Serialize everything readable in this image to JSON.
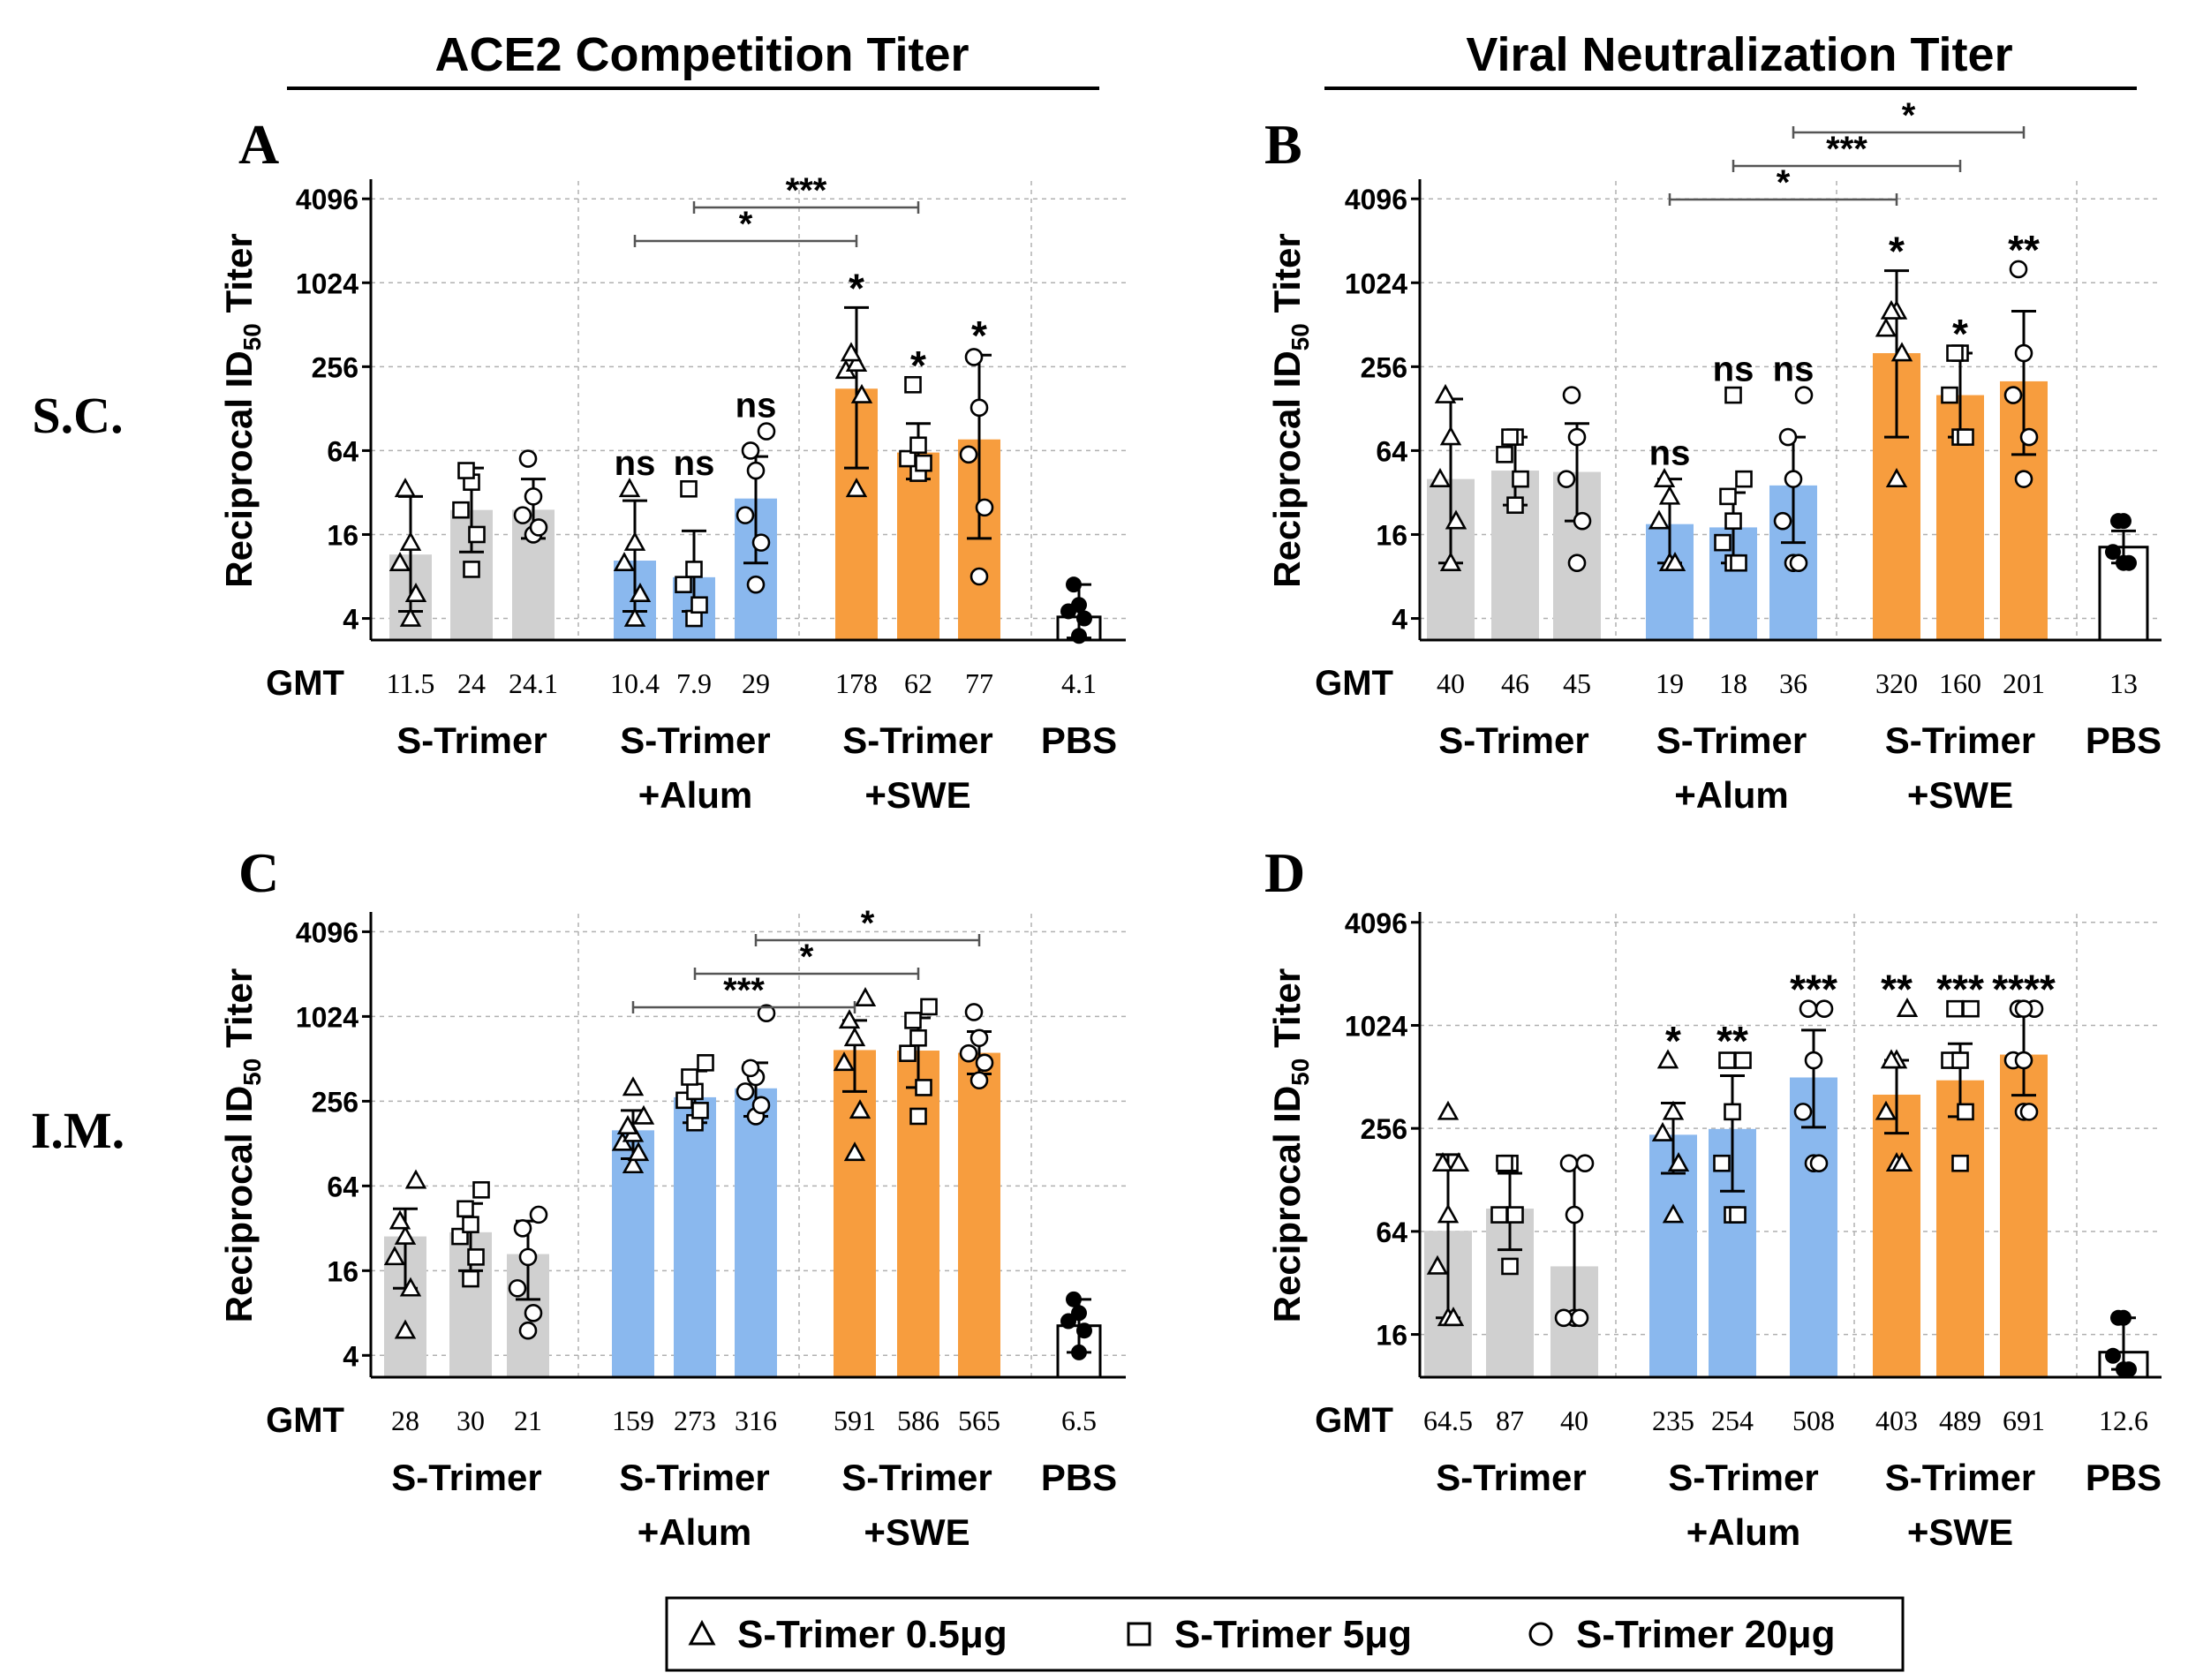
{
  "figure": {
    "col_headers": [
      "ACE2 Competition Titer",
      "Viral Neutralization Titer"
    ],
    "row_labels": [
      "S.C.",
      "I.M."
    ],
    "y_axis_label": "Reciprocal ID",
    "y_axis_sub": "50",
    "y_axis_suffix": " Titer",
    "gmt_label": "GMT",
    "group_names": [
      [
        "S-Trimer"
      ],
      [
        "S-Trimer",
        "+Alum"
      ],
      [
        "S-Trimer",
        "+SWE"
      ],
      [
        "PBS"
      ]
    ],
    "legend": [
      {
        "marker": "triangle",
        "label": "S-Trimer 0.5μg"
      },
      {
        "marker": "square",
        "label": "S-Trimer 5μg"
      },
      {
        "marker": "circle",
        "label": "S-Trimer 20μg"
      }
    ]
  },
  "colors": {
    "gray": "#d0d0d0",
    "blue": "#8ab8ee",
    "orange": "#f79d3e",
    "white": "#ffffff",
    "axis": "#000000",
    "grid": "#b0b0b0"
  },
  "chart_data": [
    {
      "panel": "A",
      "type": "bar",
      "route": "S.C.",
      "measure": "ACE2 Competition Titer",
      "yscale": "log2",
      "ylim": [
        2.8,
        5500
      ],
      "yticks": [
        4,
        16,
        64,
        256,
        1024,
        4096
      ],
      "bars": [
        {
          "group": "S-Trimer",
          "dose": "0.5μg",
          "marker": "triangle",
          "color": "gray",
          "gmt": 11.5,
          "gmt_label": "11.5",
          "err": [
            4.5,
            30
          ],
          "points": [
            4,
            6,
            10,
            14,
            34
          ],
          "sig": ""
        },
        {
          "group": "S-Trimer",
          "dose": "5μg",
          "marker": "square",
          "color": "gray",
          "gmt": 24,
          "gmt_label": "24",
          "err": [
            12,
            48
          ],
          "points": [
            9,
            16,
            24,
            38,
            46
          ],
          "sig": ""
        },
        {
          "group": "S-Trimer",
          "dose": "20μg",
          "marker": "circle",
          "color": "gray",
          "gmt": 24.1,
          "gmt_label": "24.1",
          "err": [
            15,
            40
          ],
          "points": [
            16,
            18,
            22,
            30,
            56
          ],
          "sig": ""
        },
        {
          "group": "S-Trimer +Alum",
          "dose": "0.5μg",
          "marker": "triangle",
          "color": "blue",
          "gmt": 10.4,
          "gmt_label": "10.4",
          "err": [
            4.5,
            28
          ],
          "points": [
            4,
            6,
            10,
            14,
            34
          ],
          "sig": "ns"
        },
        {
          "group": "S-Trimer +Alum",
          "dose": "5μg",
          "marker": "square",
          "color": "blue",
          "gmt": 7.9,
          "gmt_label": "7.9",
          "err": [
            4.5,
            17
          ],
          "points": [
            4,
            5,
            7,
            9,
            34
          ],
          "sig": "ns"
        },
        {
          "group": "S-Trimer +Alum",
          "dose": "20μg",
          "marker": "circle",
          "color": "blue",
          "gmt": 29,
          "gmt_label": "29",
          "err": [
            10,
            58
          ],
          "points": [
            7,
            14,
            22,
            46,
            64,
            88
          ],
          "sig": "ns"
        },
        {
          "group": "S-Trimer +SWE",
          "dose": "0.5μg",
          "marker": "triangle",
          "color": "orange",
          "gmt": 178,
          "gmt_label": "178",
          "err": [
            48,
            680
          ],
          "points": [
            34,
            160,
            240,
            270,
            320
          ],
          "sig": "*"
        },
        {
          "group": "S-Trimer +SWE",
          "dose": "5μg",
          "marker": "square",
          "color": "orange",
          "gmt": 62,
          "gmt_label": "62",
          "err": [
            40,
            100
          ],
          "points": [
            44,
            52,
            56,
            70,
            190
          ],
          "sig": "*"
        },
        {
          "group": "S-Trimer +SWE",
          "dose": "20μg",
          "marker": "circle",
          "color": "orange",
          "gmt": 77,
          "gmt_label": "77",
          "err": [
            15,
            310
          ],
          "points": [
            8,
            25,
            60,
            130,
            300
          ],
          "sig": "*"
        },
        {
          "group": "PBS",
          "dose": "",
          "marker": "dot",
          "color": "white",
          "gmt": 4.1,
          "gmt_label": "4.1",
          "err": [
            2.9,
            7
          ],
          "points": [
            3,
            4,
            4.5,
            5,
            7
          ],
          "sig": ""
        }
      ],
      "brackets": [
        {
          "from": 3,
          "to": 6,
          "label": "*"
        },
        {
          "from": 4,
          "to": 7,
          "label": "***"
        }
      ]
    },
    {
      "panel": "B",
      "type": "bar",
      "route": "S.C.",
      "measure": "Viral Neutralization Titer",
      "yscale": "log2",
      "ylim": [
        2.8,
        5500
      ],
      "yticks": [
        4,
        16,
        64,
        256,
        1024,
        4096
      ],
      "bars": [
        {
          "group": "S-Trimer",
          "dose": "0.5μg",
          "marker": "triangle",
          "color": "gray",
          "gmt": 40,
          "gmt_label": "40",
          "err": [
            10,
            150
          ],
          "points": [
            10,
            20,
            40,
            80,
            160
          ],
          "sig": ""
        },
        {
          "group": "S-Trimer",
          "dose": "5μg",
          "marker": "square",
          "color": "gray",
          "gmt": 46,
          "gmt_label": "46",
          "err": [
            26,
            80
          ],
          "points": [
            26,
            40,
            60,
            80,
            80
          ],
          "sig": ""
        },
        {
          "group": "S-Trimer",
          "dose": "20μg",
          "marker": "circle",
          "color": "gray",
          "gmt": 45,
          "gmt_label": "45",
          "err": [
            20,
            100
          ],
          "points": [
            10,
            20,
            40,
            80,
            160
          ],
          "sig": ""
        },
        {
          "group": "S-Trimer +Alum",
          "dose": "0.5μg",
          "marker": "triangle",
          "color": "blue",
          "gmt": 19,
          "gmt_label": "19",
          "err": [
            10,
            40
          ],
          "points": [
            10,
            10,
            20,
            30,
            40
          ],
          "sig": "ns"
        },
        {
          "group": "S-Trimer +Alum",
          "dose": "5μg",
          "marker": "square",
          "color": "blue",
          "gmt": 18,
          "gmt_label": "18",
          "err": [
            10,
            32
          ],
          "points": [
            10,
            10,
            14,
            20,
            30,
            40,
            160
          ],
          "sig": "ns"
        },
        {
          "group": "S-Trimer +Alum",
          "dose": "20μg",
          "marker": "circle",
          "color": "blue",
          "gmt": 36,
          "gmt_label": "36",
          "err": [
            14,
            80
          ],
          "points": [
            10,
            10,
            20,
            40,
            80,
            160
          ],
          "sig": "ns"
        },
        {
          "group": "S-Trimer +SWE",
          "dose": "0.5μg",
          "marker": "triangle",
          "color": "orange",
          "gmt": 320,
          "gmt_label": "320",
          "err": [
            80,
            1250
          ],
          "points": [
            40,
            320,
            480,
            640,
            640
          ],
          "sig": "*"
        },
        {
          "group": "S-Trimer +SWE",
          "dose": "5μg",
          "marker": "square",
          "color": "orange",
          "gmt": 160,
          "gmt_label": "160",
          "err": [
            80,
            320
          ],
          "points": [
            80,
            80,
            160,
            320,
            320
          ],
          "sig": "*"
        },
        {
          "group": "S-Trimer +SWE",
          "dose": "20μg",
          "marker": "circle",
          "color": "orange",
          "gmt": 201,
          "gmt_label": "201",
          "err": [
            60,
            640
          ],
          "points": [
            40,
            80,
            160,
            320,
            1280
          ],
          "sig": "**"
        },
        {
          "group": "PBS",
          "dose": "",
          "marker": "dot",
          "color": "white",
          "gmt": 13,
          "gmt_label": "13",
          "err": [
            10,
            17
          ],
          "points": [
            10,
            10,
            12,
            20,
            20
          ],
          "sig": ""
        }
      ],
      "brackets": [
        {
          "from": 3,
          "to": 6,
          "label": "*"
        },
        {
          "from": 4,
          "to": 7,
          "label": "***"
        },
        {
          "from": 5,
          "to": 8,
          "label": "*"
        }
      ]
    },
    {
      "panel": "C",
      "type": "bar",
      "route": "I.M.",
      "measure": "ACE2 Competition Titer",
      "yscale": "log2",
      "ylim": [
        2.8,
        5500
      ],
      "yticks": [
        4,
        16,
        64,
        256,
        1024,
        4096
      ],
      "bars": [
        {
          "group": "S-Trimer",
          "dose": "0.5μg",
          "marker": "triangle",
          "color": "gray",
          "gmt": 28,
          "gmt_label": "28",
          "err": [
            12,
            44
          ],
          "points": [
            6,
            12,
            20,
            28,
            36,
            70
          ],
          "sig": ""
        },
        {
          "group": "S-Trimer",
          "dose": "5μg",
          "marker": "square",
          "color": "gray",
          "gmt": 30,
          "gmt_label": "30",
          "err": [
            16,
            48
          ],
          "points": [
            14,
            20,
            28,
            34,
            44,
            60
          ],
          "sig": ""
        },
        {
          "group": "S-Trimer",
          "dose": "20μg",
          "marker": "circle",
          "color": "gray",
          "gmt": 21,
          "gmt_label": "21",
          "err": [
            10,
            36
          ],
          "points": [
            6,
            8,
            12,
            20,
            32,
            40
          ],
          "sig": ""
        },
        {
          "group": "S-Trimer +Alum",
          "dose": "0.5μg",
          "marker": "triangle",
          "color": "blue",
          "gmt": 159,
          "gmt_label": "159",
          "err": [
            100,
            220
          ],
          "points": [
            90,
            110,
            130,
            150,
            170,
            200,
            320
          ],
          "sig": ""
        },
        {
          "group": "S-Trimer +Alum",
          "dose": "5μg",
          "marker": "square",
          "color": "blue",
          "gmt": 273,
          "gmt_label": "273",
          "err": [
            180,
            420
          ],
          "points": [
            180,
            220,
            260,
            300,
            380,
            480
          ],
          "sig": ""
        },
        {
          "group": "S-Trimer +Alum",
          "dose": "20μg",
          "marker": "circle",
          "color": "blue",
          "gmt": 316,
          "gmt_label": "316",
          "err": [
            200,
            480
          ],
          "points": [
            200,
            240,
            300,
            380,
            440,
            1080
          ],
          "sig": ""
        },
        {
          "group": "S-Trimer +SWE",
          "dose": "0.5μg",
          "marker": "triangle",
          "color": "orange",
          "gmt": 591,
          "gmt_label": "591",
          "err": [
            300,
            960
          ],
          "points": [
            110,
            220,
            480,
            720,
            960,
            1380
          ],
          "sig": ""
        },
        {
          "group": "S-Trimer +SWE",
          "dose": "5μg",
          "marker": "square",
          "color": "orange",
          "gmt": 586,
          "gmt_label": "586",
          "err": [
            320,
            1000
          ],
          "points": [
            200,
            320,
            560,
            720,
            960,
            1200
          ],
          "sig": ""
        },
        {
          "group": "S-Trimer +SWE",
          "dose": "20μg",
          "marker": "circle",
          "color": "orange",
          "gmt": 565,
          "gmt_label": "565",
          "err": [
            400,
            800
          ],
          "points": [
            360,
            480,
            560,
            720,
            1100
          ],
          "sig": ""
        },
        {
          "group": "PBS",
          "dose": "",
          "marker": "dot",
          "color": "white",
          "gmt": 6.5,
          "gmt_label": "6.5",
          "err": [
            4.2,
            10
          ],
          "points": [
            4.2,
            6,
            7,
            8,
            10
          ],
          "sig": ""
        }
      ],
      "brackets": [
        {
          "from": 3,
          "to": 6,
          "label": "***"
        },
        {
          "from": 4,
          "to": 7,
          "label": "*"
        },
        {
          "from": 5,
          "to": 8,
          "label": "*"
        }
      ]
    },
    {
      "panel": "D",
      "type": "bar",
      "route": "I.M.",
      "measure": "Viral Neutralization Titer",
      "yscale": "log2",
      "ylim": [
        9,
        4600
      ],
      "yticks": [
        16,
        64,
        256,
        1024,
        4096
      ],
      "bars": [
        {
          "group": "S-Trimer",
          "dose": "0.5μg",
          "marker": "triangle",
          "color": "gray",
          "gmt": 64.5,
          "gmt_label": "64.5",
          "err": [
            20,
            180
          ],
          "points": [
            20,
            20,
            40,
            80,
            160,
            160,
            320
          ],
          "sig": ""
        },
        {
          "group": "S-Trimer",
          "dose": "5μg",
          "marker": "square",
          "color": "gray",
          "gmt": 87,
          "gmt_label": "87",
          "err": [
            50,
            140
          ],
          "points": [
            40,
            80,
            80,
            160,
            160
          ],
          "sig": ""
        },
        {
          "group": "S-Trimer",
          "dose": "20μg",
          "marker": "circle",
          "color": "gray",
          "gmt": 40,
          "gmt_label": "40",
          "err": [
            20,
            160
          ],
          "points": [
            20,
            20,
            20,
            80,
            160,
            160
          ],
          "sig": ""
        },
        {
          "group": "S-Trimer +Alum",
          "dose": "0.5μg",
          "marker": "triangle",
          "color": "blue",
          "gmt": 235,
          "gmt_label": "235",
          "err": [
            140,
            360
          ],
          "points": [
            80,
            160,
            240,
            320,
            640
          ],
          "sig": "*"
        },
        {
          "group": "S-Trimer +Alum",
          "dose": "5μg",
          "marker": "square",
          "color": "blue",
          "gmt": 254,
          "gmt_label": "254",
          "err": [
            110,
            520
          ],
          "points": [
            80,
            80,
            160,
            320,
            640,
            640
          ],
          "sig": "**"
        },
        {
          "group": "S-Trimer +Alum",
          "dose": "20μg",
          "marker": "circle",
          "color": "blue",
          "gmt": 508,
          "gmt_label": "508",
          "err": [
            260,
            960
          ],
          "points": [
            160,
            160,
            320,
            640,
            1280,
            1280
          ],
          "sig": "***"
        },
        {
          "group": "S-Trimer +SWE",
          "dose": "0.5μg",
          "marker": "triangle",
          "color": "orange",
          "gmt": 403,
          "gmt_label": "403",
          "err": [
            240,
            640
          ],
          "points": [
            160,
            160,
            320,
            640,
            640,
            1280
          ],
          "sig": "**"
        },
        {
          "group": "S-Trimer +SWE",
          "dose": "5μg",
          "marker": "square",
          "color": "orange",
          "gmt": 489,
          "gmt_label": "489",
          "err": [
            300,
            800
          ],
          "points": [
            160,
            320,
            640,
            640,
            1280,
            1280
          ],
          "sig": "***"
        },
        {
          "group": "S-Trimer +SWE",
          "dose": "20μg",
          "marker": "circle",
          "color": "orange",
          "gmt": 691,
          "gmt_label": "691",
          "err": [
            400,
            1200
          ],
          "points": [
            320,
            320,
            640,
            640,
            1280,
            1280,
            1280
          ],
          "sig": "****"
        },
        {
          "group": "PBS",
          "dose": "",
          "marker": "dot",
          "color": "white",
          "gmt": 12.6,
          "gmt_label": "12.6",
          "err": [
            10,
            20
          ],
          "points": [
            10,
            10,
            12,
            20,
            20
          ],
          "sig": ""
        }
      ],
      "brackets": []
    }
  ]
}
